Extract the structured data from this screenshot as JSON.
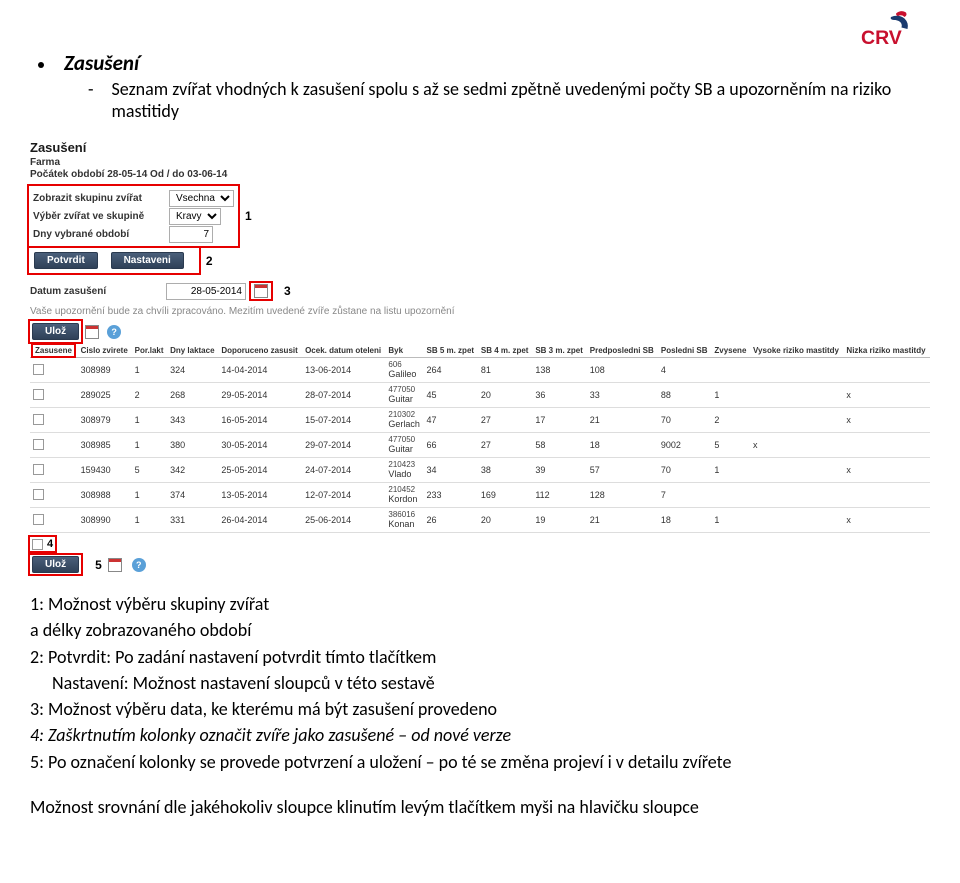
{
  "logo": {
    "text": "CRV",
    "primary": "#c8102e",
    "secondary": "#1a3a6e"
  },
  "heading": {
    "title": "Zasušení",
    "subtitle": "Seznam zvířat vhodných k zasušení spolu s až se sedmi zpětně uvedenými počty SB a upozorněním na riziko mastitidy"
  },
  "screenshot": {
    "title": "Zasušení",
    "farm_label": "Farma",
    "period_label": "Počátek období 28-05-14 Od / do 03-06-14",
    "controls": {
      "group_label": "Zobrazit skupinu zvířat",
      "group_value": "Vsechna",
      "selection_label": "Výběr zvířat ve skupině",
      "selection_value": "Kravy",
      "days_label": "Dny vybrané období",
      "days_value": "7",
      "confirm": "Potvrdit",
      "settings": "Nastaveni",
      "tag1": "1",
      "tag2": "2"
    },
    "date_row": {
      "label": "Datum zasušení",
      "value": "28-05-2014",
      "tag3": "3"
    },
    "info": "Vaše upozornění bude za chvíli zpracováno. Mezitím uvedené zvíře zůstane na listu upozornění",
    "save_btn": "Ulož",
    "table": {
      "headers": [
        "Zasusene",
        "Cislo zvirete",
        "Por.lakt",
        "Dny laktace",
        "Doporuceno zasusit",
        "Ocek. datum oteleni",
        "Byk",
        "SB 5 m. zpet",
        "SB 4 m. zpet",
        "SB 3 m. zpet",
        "Predposledni SB",
        "Posledni SB",
        "Zvysene",
        "Vysoke riziko mastitdy",
        "Nizka riziko mastitdy"
      ],
      "rows": [
        {
          "id": "308989",
          "lakt": "1",
          "dny": "324",
          "dop": "14-04-2014",
          "ocek": "13-06-2014",
          "byk": "Galileo",
          "byk_id": "606",
          "sb5": "264",
          "sb4": "81",
          "sb3": "138",
          "sb2": "108",
          "sb1": "4",
          "zvy": "",
          "vr": "",
          "nr": ""
        },
        {
          "id": "289025",
          "lakt": "2",
          "dny": "268",
          "dop": "29-05-2014",
          "ocek": "28-07-2014",
          "byk": "Guitar",
          "byk_id": "477050",
          "sb5": "45",
          "sb4": "20",
          "sb3": "36",
          "sb2": "33",
          "sb1": "88",
          "zvy": "1",
          "vr": "",
          "nr": "x"
        },
        {
          "id": "308979",
          "lakt": "1",
          "dny": "343",
          "dop": "16-05-2014",
          "ocek": "15-07-2014",
          "byk": "Gerlach",
          "byk_id": "210302",
          "sb5": "47",
          "sb4": "27",
          "sb3": "17",
          "sb2": "21",
          "sb1": "70",
          "zvy": "2",
          "vr": "",
          "nr": "x"
        },
        {
          "id": "308985",
          "lakt": "1",
          "dny": "380",
          "dop": "30-05-2014",
          "ocek": "29-07-2014",
          "byk": "Guitar",
          "byk_id": "477050",
          "sb5": "66",
          "sb4": "27",
          "sb3": "58",
          "sb2": "18",
          "sb1": "9002",
          "zvy": "5",
          "vr": "x",
          "nr": ""
        },
        {
          "id": "159430",
          "lakt": "5",
          "dny": "342",
          "dop": "25-05-2014",
          "ocek": "24-07-2014",
          "byk": "Vlado",
          "byk_id": "210423",
          "sb5": "34",
          "sb4": "38",
          "sb3": "39",
          "sb2": "57",
          "sb1": "70",
          "zvy": "1",
          "vr": "",
          "nr": "x"
        },
        {
          "id": "308988",
          "lakt": "1",
          "dny": "374",
          "dop": "13-05-2014",
          "ocek": "12-07-2014",
          "byk": "Kordon",
          "byk_id": "210452",
          "sb5": "233",
          "sb4": "169",
          "sb3": "112",
          "sb2": "128",
          "sb1": "7",
          "zvy": "",
          "vr": "",
          "nr": ""
        },
        {
          "id": "308990",
          "lakt": "1",
          "dny": "331",
          "dop": "26-04-2014",
          "ocek": "25-06-2014",
          "byk": "Konan",
          "byk_id": "386016",
          "sb5": "26",
          "sb4": "20",
          "sb3": "19",
          "sb2": "21",
          "sb1": "18",
          "zvy": "1",
          "vr": "",
          "nr": "x"
        }
      ],
      "tag4": "4",
      "tag5": "5"
    }
  },
  "notes": {
    "n1": "1:  Možnost výběru skupiny zvířat",
    "n1b": "a délky zobrazovaného období",
    "n2a": "2:  Potvrdit: Po zadání nastavení potvrdit tímto tlačítkem",
    "n2b": "Nastavení: Možnost nastavení sloupců v této sestavě",
    "n3": "3:  Možnost výběru data, ke kterému má být zasušení provedeno",
    "n4": "4:  Zaškrtnutím kolonky označit zvíře jako zasušené – od nové verze",
    "n5": "5:  Po označení kolonky se provede potvrzení a uložení – po té se změna projeví i v detailu zvířete"
  },
  "footer": "Možnost srovnání dle jakéhokoliv sloupce klinutím levým tlačítkem myši na hlavičku sloupce"
}
